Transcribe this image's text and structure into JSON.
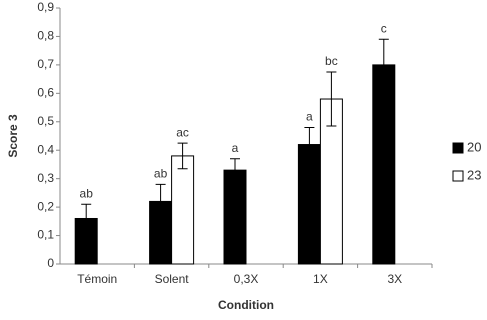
{
  "chart_data": {
    "type": "bar",
    "xlabel": "Condition",
    "ylabel": "Score 3",
    "categories": [
      "Témoin",
      "Solent",
      "0,3X",
      "1X",
      "3X"
    ],
    "series": [
      {
        "name": "20",
        "color": "#000000",
        "values": [
          0.16,
          0.22,
          0.33,
          0.42,
          0.7
        ],
        "errors": [
          0.05,
          0.06,
          0.04,
          0.06,
          0.09
        ],
        "letters": [
          "ab",
          "ab",
          "a",
          "a",
          "c"
        ]
      },
      {
        "name": "23",
        "color": "#ffffff",
        "values": [
          null,
          0.38,
          null,
          0.58,
          null
        ],
        "errors": [
          null,
          0.045,
          null,
          0.095,
          null
        ],
        "letters": [
          null,
          "ac",
          null,
          "bc",
          null
        ]
      }
    ],
    "ylim": [
      0,
      0.9
    ],
    "yticks": [
      0,
      {
        "value": 0.1,
        "label": "0,1"
      },
      {
        "value": 0.2,
        "label": "0,2"
      },
      {
        "value": 0.3,
        "label": "0,3"
      },
      {
        "value": 0.4,
        "label": "0,4"
      },
      {
        "value": 0.5,
        "label": "0,5"
      },
      {
        "value": 0.6,
        "label": "0,6"
      },
      {
        "value": 0.7,
        "label": "0,7"
      },
      {
        "value": 0.8,
        "label": "0,8"
      },
      {
        "value": 0.9,
        "label": "0,9"
      }
    ],
    "legend": "right"
  }
}
